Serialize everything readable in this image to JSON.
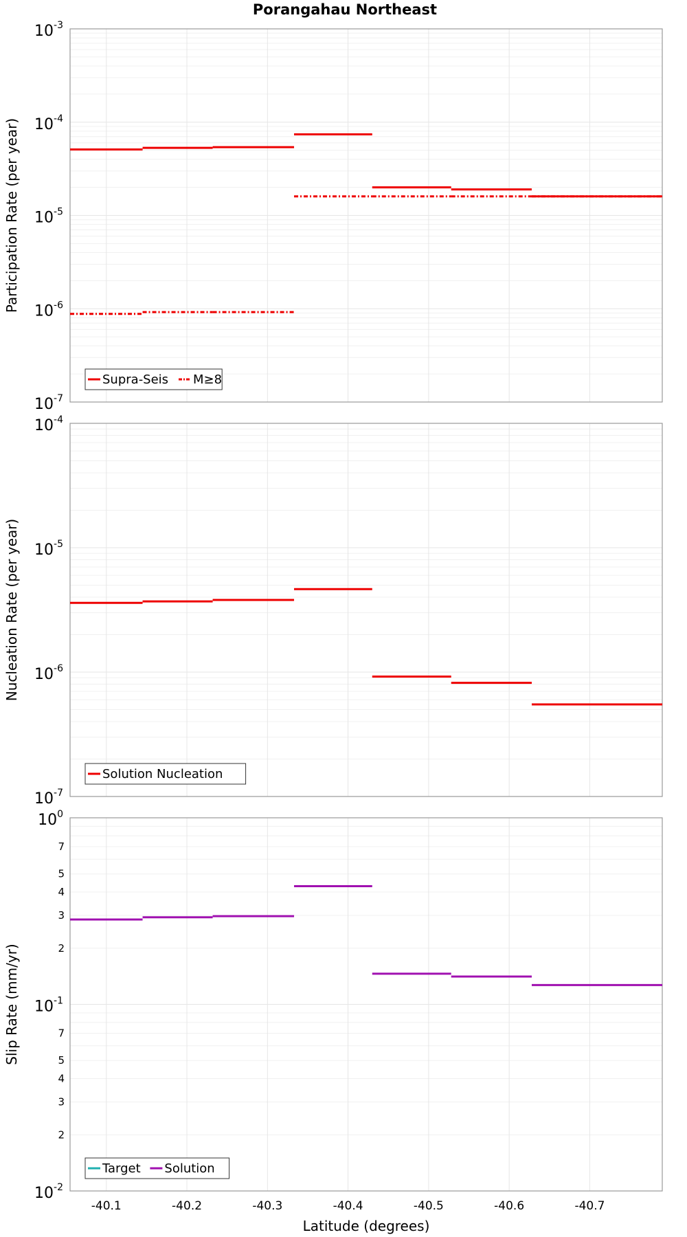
{
  "chart_data": {
    "title": "Porangahau Northeast",
    "xlabel": "Latitude (degrees)",
    "xlim": [
      -40.055,
      -40.79
    ],
    "x_ticks": [
      -40.1,
      -40.2,
      -40.3,
      -40.4,
      -40.5,
      -40.6,
      -40.7
    ],
    "x_tick_labels": [
      "-40.1",
      "-40.2",
      "-40.3",
      "-40.4",
      "-40.5",
      "-40.6",
      "-40.7"
    ],
    "colors": {
      "red": "#ee0000",
      "magenta": "#a010b0",
      "teal": "#20b0b0",
      "grid": "#e6e6e6",
      "frame": "#9a9a9a"
    },
    "panels": [
      {
        "type": "line",
        "scale": "log",
        "ylabel": "Participation Rate (per year)",
        "ylim": [
          1e-07,
          0.001
        ],
        "y_major_ticks": [
          {
            "value": 1e-07,
            "base": "10",
            "exp": "-7"
          },
          {
            "value": 1e-06,
            "base": "10",
            "exp": "-6"
          },
          {
            "value": 1e-05,
            "base": "10",
            "exp": "-5"
          },
          {
            "value": 0.0001,
            "base": "10",
            "exp": "-4"
          },
          {
            "value": 0.001,
            "base": "10",
            "exp": "-3"
          }
        ],
        "series": [
          {
            "name": "Supra-Seis",
            "style": "solid",
            "color": "#ee0000",
            "segments": [
              {
                "x0": -40.055,
                "x1": -40.145,
                "y": 5.1e-05
              },
              {
                "x0": -40.145,
                "x1": -40.232,
                "y": 5.3e-05
              },
              {
                "x0": -40.232,
                "x1": -40.333,
                "y": 5.4e-05
              },
              {
                "x0": -40.333,
                "x1": -40.43,
                "y": 7.4e-05
              },
              {
                "x0": -40.43,
                "x1": -40.528,
                "y": 2e-05
              },
              {
                "x0": -40.528,
                "x1": -40.628,
                "y": 1.9e-05
              },
              {
                "x0": -40.628,
                "x1": -40.79,
                "y": 1.6e-05
              }
            ]
          },
          {
            "name": "M≥8",
            "style": "dashdot",
            "color": "#ee0000",
            "segments": [
              {
                "x0": -40.055,
                "x1": -40.145,
                "y": 8.8e-07
              },
              {
                "x0": -40.145,
                "x1": -40.232,
                "y": 9.2e-07
              },
              {
                "x0": -40.232,
                "x1": -40.333,
                "y": 9.2e-07
              },
              {
                "x0": -40.333,
                "x1": -40.43,
                "y": 1.6e-05
              },
              {
                "x0": -40.43,
                "x1": -40.528,
                "y": 1.6e-05
              },
              {
                "x0": -40.528,
                "x1": -40.628,
                "y": 1.6e-05
              },
              {
                "x0": -40.628,
                "x1": -40.79,
                "y": 1.6e-05
              }
            ]
          }
        ],
        "legend": [
          {
            "label": "Supra-Seis",
            "color": "#ee0000",
            "style": "solid"
          },
          {
            "label": "M≥8",
            "color": "#ee0000",
            "style": "dashdot"
          }
        ],
        "legend_position": "bottom-left"
      },
      {
        "type": "line",
        "scale": "log",
        "ylabel": "Nucleation Rate (per year)",
        "ylim": [
          1e-07,
          0.0001
        ],
        "y_major_ticks": [
          {
            "value": 1e-07,
            "base": "10",
            "exp": "-7"
          },
          {
            "value": 1e-06,
            "base": "10",
            "exp": "-6"
          },
          {
            "value": 1e-05,
            "base": "10",
            "exp": "-5"
          },
          {
            "value": 0.0001,
            "base": "10",
            "exp": "-4"
          }
        ],
        "series": [
          {
            "name": "Solution Nucleation",
            "style": "solid",
            "color": "#ee0000",
            "segments": [
              {
                "x0": -40.055,
                "x1": -40.145,
                "y": 3.6e-06
              },
              {
                "x0": -40.145,
                "x1": -40.232,
                "y": 3.7e-06
              },
              {
                "x0": -40.232,
                "x1": -40.333,
                "y": 3.8e-06
              },
              {
                "x0": -40.333,
                "x1": -40.43,
                "y": 4.65e-06
              },
              {
                "x0": -40.43,
                "x1": -40.528,
                "y": 9.2e-07
              },
              {
                "x0": -40.528,
                "x1": -40.628,
                "y": 8.2e-07
              },
              {
                "x0": -40.628,
                "x1": -40.79,
                "y": 5.5e-07
              }
            ]
          }
        ],
        "legend": [
          {
            "label": "Solution Nucleation",
            "color": "#ee0000",
            "style": "solid"
          }
        ],
        "legend_position": "bottom-left"
      },
      {
        "type": "line",
        "scale": "log",
        "ylabel": "Slip Rate (mm/yr)",
        "ylim": [
          0.01,
          1
        ],
        "y_major_ticks": [
          {
            "value": 0.01,
            "base": "10",
            "exp": "-2"
          },
          {
            "value": 0.1,
            "base": "10",
            "exp": "-1"
          },
          {
            "value": 1,
            "base": "10",
            "exp": "0"
          }
        ],
        "y_minor_labels": [
          {
            "value": 0.02,
            "label": "2"
          },
          {
            "value": 0.03,
            "label": "3"
          },
          {
            "value": 0.04,
            "label": "4"
          },
          {
            "value": 0.05,
            "label": "5"
          },
          {
            "value": 0.07,
            "label": "7"
          },
          {
            "value": 0.2,
            "label": "2"
          },
          {
            "value": 0.3,
            "label": "3"
          },
          {
            "value": 0.4,
            "label": "4"
          },
          {
            "value": 0.5,
            "label": "5"
          },
          {
            "value": 0.7,
            "label": "7"
          }
        ],
        "series": [
          {
            "name": "Solution",
            "style": "solid",
            "color": "#a010b0",
            "segments": [
              {
                "x0": -40.055,
                "x1": -40.145,
                "y": 0.285
              },
              {
                "x0": -40.145,
                "x1": -40.232,
                "y": 0.293
              },
              {
                "x0": -40.232,
                "x1": -40.333,
                "y": 0.297
              },
              {
                "x0": -40.333,
                "x1": -40.43,
                "y": 0.43
              },
              {
                "x0": -40.43,
                "x1": -40.528,
                "y": 0.146
              },
              {
                "x0": -40.528,
                "x1": -40.628,
                "y": 0.141
              },
              {
                "x0": -40.628,
                "x1": -40.79,
                "y": 0.127
              }
            ]
          }
        ],
        "legend": [
          {
            "label": "Target",
            "color": "#20b0b0",
            "style": "solid"
          },
          {
            "label": "Solution",
            "color": "#a010b0",
            "style": "solid"
          }
        ],
        "legend_position": "bottom-left"
      }
    ]
  }
}
